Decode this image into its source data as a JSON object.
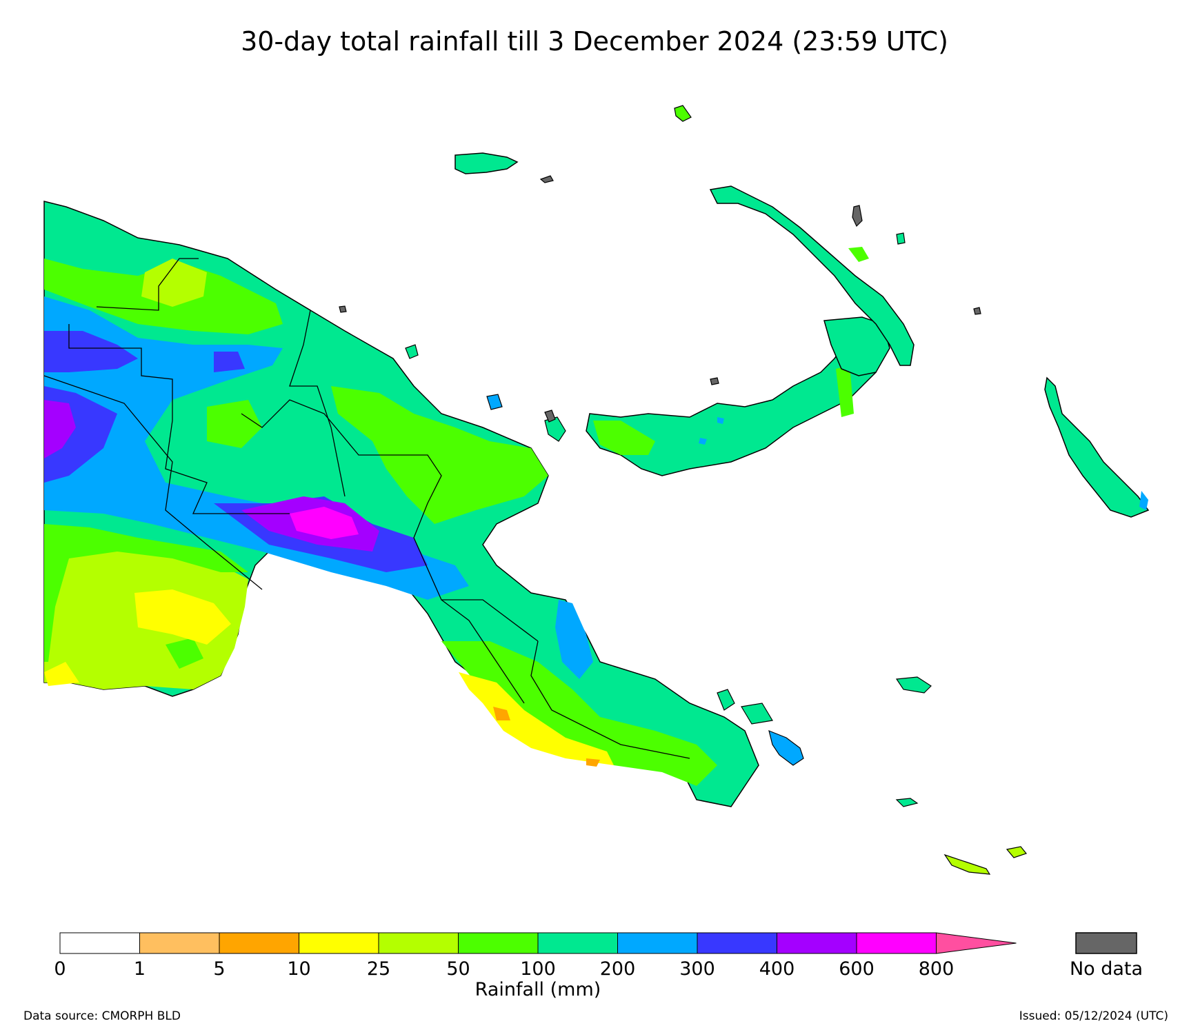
{
  "title": "30-day total rainfall till 3 December 2024 (23:59 UTC)",
  "footer": {
    "data_source": "Data source: CMORPH BLD",
    "issued": "Issued: 05/12/2024 (UTC)"
  },
  "legend": {
    "label": "Rainfall (mm)",
    "ticks": [
      "0",
      "1",
      "5",
      "10",
      "25",
      "50",
      "100",
      "200",
      "300",
      "400",
      "600",
      "800"
    ],
    "bins": [
      {
        "from": "0",
        "to": "1",
        "color": "#ffffff"
      },
      {
        "from": "1",
        "to": "5",
        "color": "#ffbf5f"
      },
      {
        "from": "5",
        "to": "10",
        "color": "#ffa500"
      },
      {
        "from": "10",
        "to": "25",
        "color": "#ffff00"
      },
      {
        "from": "25",
        "to": "50",
        "color": "#b4ff00"
      },
      {
        "from": "50",
        "to": "100",
        "color": "#4cff00"
      },
      {
        "from": "100",
        "to": "200",
        "color": "#00e890"
      },
      {
        "from": "200",
        "to": "300",
        "color": "#00a8ff"
      },
      {
        "from": "300",
        "to": "400",
        "color": "#3838ff"
      },
      {
        "from": "400",
        "to": "600",
        "color": "#a400ff"
      },
      {
        "from": "600",
        "to": "800",
        "color": "#ff00ff"
      }
    ],
    "extension_color": "#ff4fa0",
    "no_data_label": "No data",
    "no_data_color": "#666666"
  }
}
